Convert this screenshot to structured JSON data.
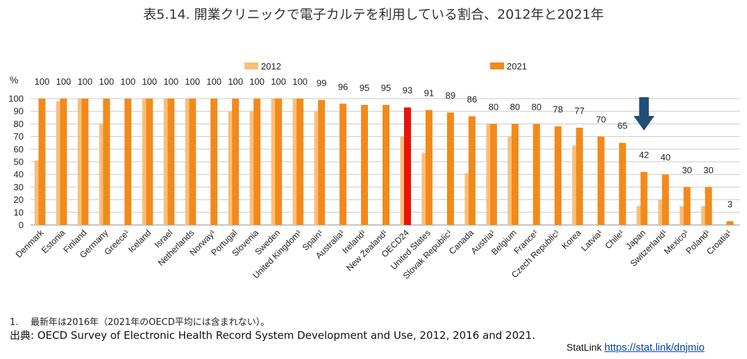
{
  "title": "表5.14. 開業クリニックで電子カルテを利用している割合、2012年と2021年",
  "footnote": {
    "number": "1.",
    "text": "最新年は2016年（2021年のOECD平均には含まれない）。"
  },
  "source": {
    "label": "出典:",
    "text": "OECD Survey of Electronic Health Record System Development and Use, 2012, 2016 and 2021."
  },
  "statlink": {
    "label": "StatLink",
    "url": "https://stat.link/dnjmio"
  },
  "colors": {
    "c2012": "#FBBE78",
    "c2021": "#F28A1B",
    "oecd": "#E8140C",
    "arrow": "#1F4E79",
    "grid": "#c8c8c8"
  },
  "chart_data": {
    "type": "bar",
    "ylabel": "%",
    "ylim": [
      0,
      100
    ],
    "yticks": [
      0,
      10,
      20,
      30,
      40,
      50,
      60,
      70,
      80,
      90,
      100
    ],
    "grid": true,
    "legend": [
      "2012",
      "2021"
    ],
    "legend_position": "top",
    "highlight": "OECD24",
    "annotation": "arrow pointing to Japan",
    "categories": [
      "Denmark",
      "Estonia",
      "Finland",
      "Germany",
      "Greece¹",
      "Iceland",
      "Israel",
      "Netherlands",
      "Norway¹",
      "Portugal",
      "Slovenia",
      "Sweden",
      "United Kingdom¹",
      "Spain¹",
      "Australia¹",
      "Ireland¹",
      "New Zealand¹",
      "OECD24",
      "United States",
      "Slovak Republic¹",
      "Canada",
      "Austria¹",
      "Belgium",
      "France¹",
      "Czech Republic¹",
      "Korea",
      "Latvia¹",
      "Chile¹",
      "Japan",
      "Switzerland¹",
      "Mexico¹",
      "Poland¹",
      "Croatia¹"
    ],
    "series": [
      {
        "name": "2012",
        "values": [
          51,
          98,
          100,
          80,
          null,
          100,
          100,
          100,
          null,
          90,
          90,
          100,
          100,
          90,
          null,
          null,
          null,
          70,
          57,
          null,
          41,
          80,
          70,
          null,
          null,
          63,
          null,
          null,
          15,
          20,
          15,
          15,
          null
        ]
      },
      {
        "name": "2021",
        "values": [
          100,
          100,
          100,
          100,
          100,
          100,
          100,
          100,
          100,
          100,
          100,
          100,
          100,
          99,
          96,
          95,
          95,
          93,
          91,
          89,
          86,
          80,
          80,
          80,
          78,
          77,
          70,
          65,
          42,
          40,
          30,
          30,
          3
        ]
      }
    ]
  }
}
